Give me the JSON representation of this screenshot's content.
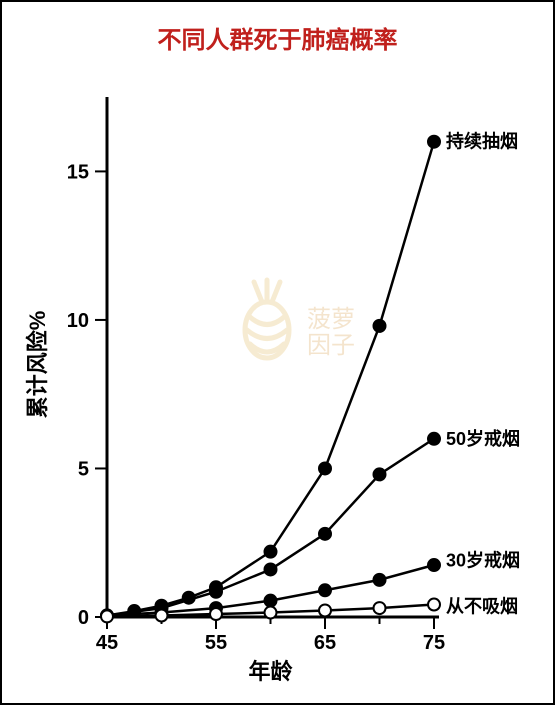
{
  "title": "不同人群死于肺癌概率",
  "title_color": "#c0201c",
  "title_fontsize": 24,
  "chart": {
    "type": "line",
    "xlabel": "年龄",
    "ylabel": "累计风险%",
    "label_fontsize": 22,
    "x_ticks": [
      45,
      55,
      65,
      75
    ],
    "y_ticks": [
      0,
      5,
      10,
      15
    ],
    "xlim": [
      45,
      75
    ],
    "ylim": [
      0,
      17
    ],
    "axis_color": "#000000",
    "axis_width": 3,
    "tick_fontsize": 20,
    "background_color": "#ffffff",
    "series": [
      {
        "name": "持续抽烟",
        "label": "持续抽烟",
        "x": [
          45,
          47.5,
          50,
          52.5,
          55,
          60,
          65,
          70,
          75
        ],
        "y": [
          0.05,
          0.2,
          0.38,
          0.65,
          1.0,
          2.2,
          5.0,
          9.8,
          16.0
        ],
        "line_color": "#000000",
        "line_width": 2.5,
        "marker": "circle",
        "marker_fill": "#000000",
        "marker_stroke": "#000000",
        "marker_size": 6,
        "label_anchor": [
          75,
          16.0
        ]
      },
      {
        "name": "50岁戒烟",
        "label": "50岁戒烟",
        "x": [
          45,
          50,
          55,
          60,
          65,
          70,
          75
        ],
        "y": [
          0.05,
          0.3,
          0.85,
          1.6,
          2.8,
          4.8,
          6.0
        ],
        "line_color": "#000000",
        "line_width": 2.5,
        "marker": "circle",
        "marker_fill": "#000000",
        "marker_stroke": "#000000",
        "marker_size": 6,
        "label_anchor": [
          75,
          6.0
        ]
      },
      {
        "name": "30岁戒烟",
        "label": "30岁戒烟",
        "x": [
          45,
          50,
          55,
          60,
          65,
          70,
          75
        ],
        "y": [
          0.05,
          0.15,
          0.3,
          0.55,
          0.9,
          1.25,
          1.75
        ],
        "line_color": "#000000",
        "line_width": 2.5,
        "marker": "circle",
        "marker_fill": "#000000",
        "marker_stroke": "#000000",
        "marker_size": 6,
        "label_anchor": [
          75,
          1.9
        ]
      },
      {
        "name": "从不吸烟",
        "label": "从不吸烟",
        "x": [
          45,
          50,
          55,
          60,
          65,
          70,
          75
        ],
        "y": [
          0.02,
          0.05,
          0.1,
          0.15,
          0.22,
          0.3,
          0.42
        ],
        "line_color": "#000000",
        "line_width": 2.5,
        "marker": "circle",
        "marker_fill": "#ffffff",
        "marker_stroke": "#000000",
        "marker_size": 6,
        "label_anchor": [
          75,
          0.35
        ]
      }
    ]
  },
  "watermark": {
    "text1": "菠萝",
    "text2": "因子",
    "color": "#d8a050"
  }
}
